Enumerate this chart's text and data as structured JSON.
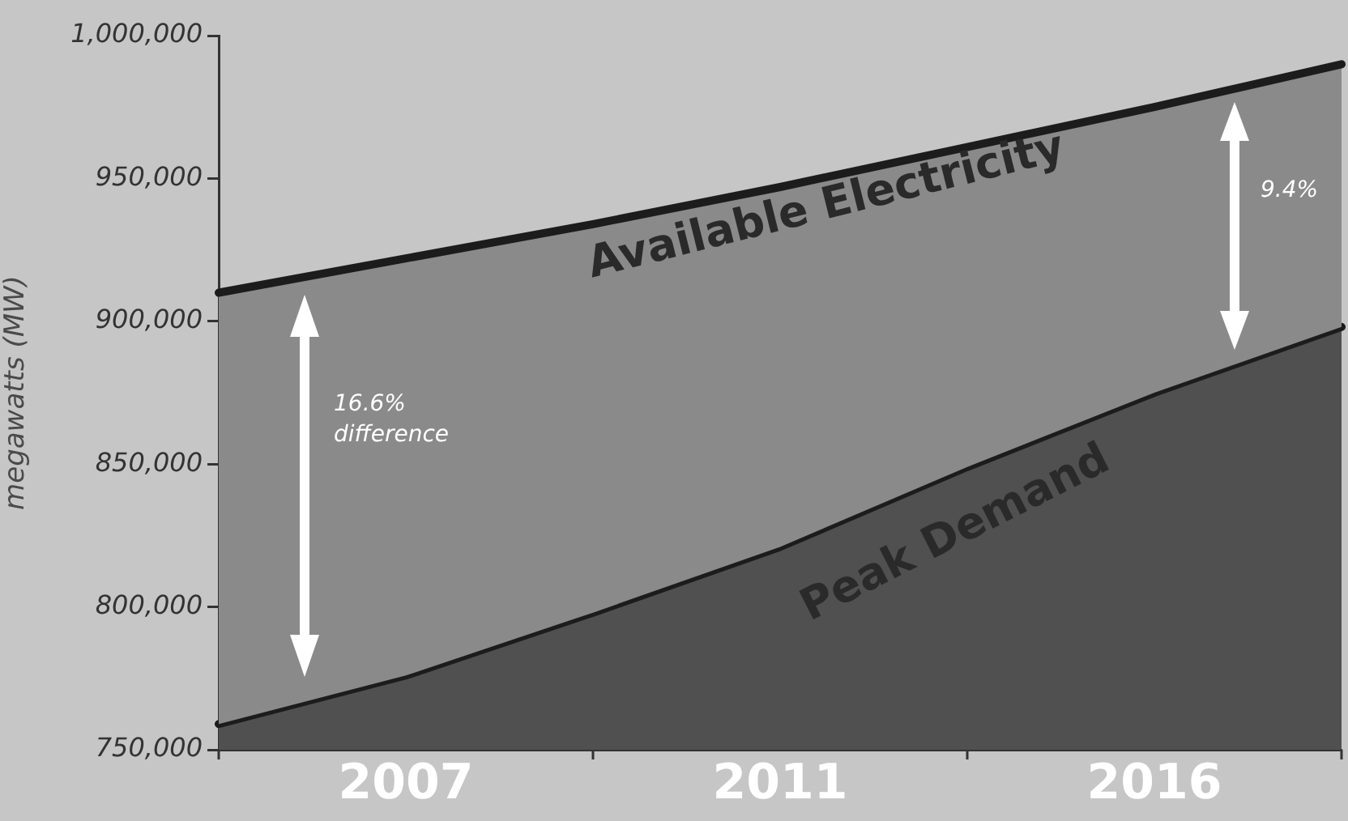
{
  "chart_data": {
    "type": "area",
    "ylabel": "megawatts (MW)",
    "categories": [
      null,
      "2007",
      null,
      "2011",
      null,
      "2016",
      null
    ],
    "ylim": [
      750000,
      1000000
    ],
    "yticks": [
      {
        "value": 750000,
        "label": "750,000"
      },
      {
        "value": 800000,
        "label": "800,000"
      },
      {
        "value": 850000,
        "label": "850,000"
      },
      {
        "value": 900000,
        "label": "900,000"
      },
      {
        "value": 950000,
        "label": "950,000"
      },
      {
        "value": 1000000,
        "label": "1,000,000"
      }
    ],
    "series": [
      {
        "name": "Available Electricity",
        "color": "#8a8a8a",
        "values": [
          910000,
          922000,
          934000,
          947000,
          961000,
          975000,
          990000
        ]
      },
      {
        "name": "Peak Demand",
        "color": "#505050",
        "values": [
          759000,
          776000,
          798000,
          821000,
          849000,
          875000,
          898000
        ]
      }
    ],
    "annotations": [
      "16.6%\ndifference",
      "9.4%"
    ],
    "grid": false,
    "legend": false
  }
}
